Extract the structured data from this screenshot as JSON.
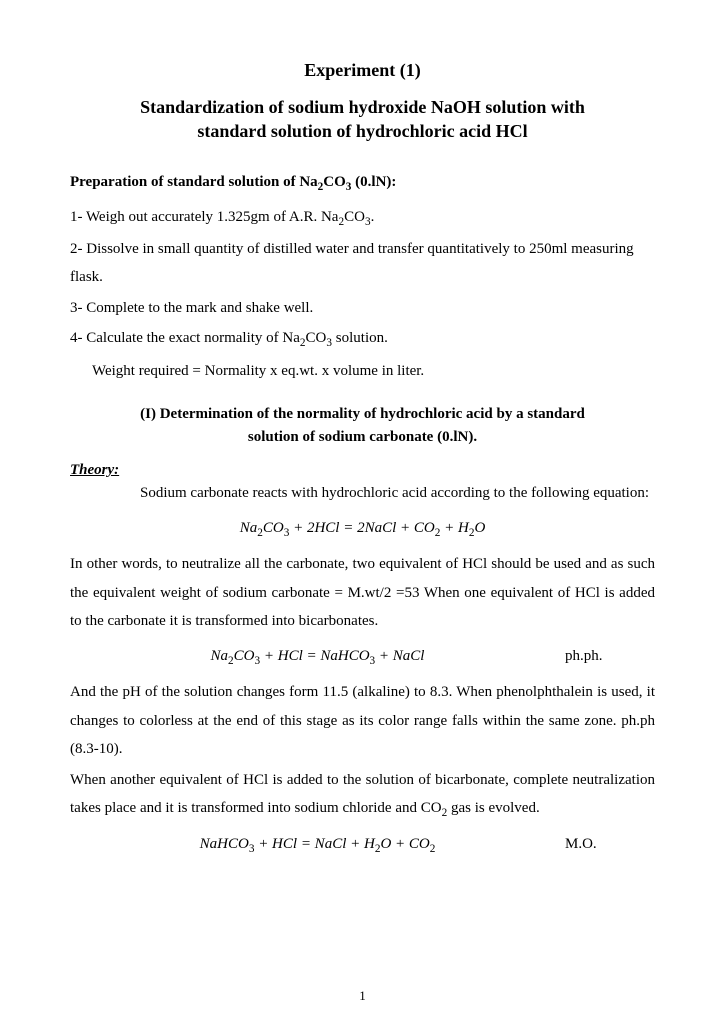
{
  "title1": "Experiment (1)",
  "title2_line1": "Standardization of sodium hydroxide NaOH solution with",
  "title2_line2": "standard solution of  hydrochloric acid HCl",
  "prep_heading_pre": "Preparation of standard solution of Na",
  "prep_heading_post": " (0.lN):",
  "step1_pre": "1- Weigh out accurately 1.325gm of A.R. Na",
  "step1_post": ".",
  "step2": "2- Dissolve in small quantity of distilled water and transfer quantitatively to 250ml measuring flask.",
  "step3": "3- Complete to the mark and shake well.",
  "step4_pre": "4- Calculate the exact normality of  Na",
  "step4_post": " solution.",
  "step4b": "Weight required = Normality x eq.wt. x volume in liter.",
  "sub_line1": "(I) Determination of the normality of hydrochloric acid by a standard",
  "sub_line2": "solution of sodium carbonate (0.lN).",
  "theory_label": "Theory:",
  "theory_p1": "Sodium carbonate reacts with hydrochloric acid according to the following equation:",
  "eq1_html": "Na<sub>2</sub>CO<sub>3</sub> + 2HCl = 2NaCl + CO<sub>2</sub> + H<sub>2</sub>O",
  "theory_p2": "In other words, to neutralize all the carbonate, two equivalent of HCl should be used and as such the equivalent weight of sodium carbonate = M.wt/2 =53 When one equivalent of HCl is added to the carbonate it is transformed into bicarbonates.",
  "eq2_html": "Na<sub>2</sub>CO<sub>3</sub> + HCl = NaHCO<sub>3</sub> + NaCl",
  "eq2_label": "ph.ph.",
  "theory_p3": "And the pH of the solution changes form 11.5 (alkaline) to 8.3. When phenolphthalein is used, it changes to colorless at the end of this stage as its color range falls within the same zone. ph.ph (8.3-10).",
  "theory_p4_pre": "When another equivalent of HCl is added to the solution of bicarbonate, complete neutralization takes place and it is transformed into sodium chloride and CO",
  "theory_p4_post": " gas is evolved.",
  "eq3_html": "NaHCO<sub>3</sub> + HCl = NaCl + H<sub>2</sub>O + CO<sub>2</sub>",
  "eq3_label": "M.O.",
  "pagenum": "1",
  "sub_co3": "CO",
  "sub_2": "2",
  "sub_3": "3"
}
